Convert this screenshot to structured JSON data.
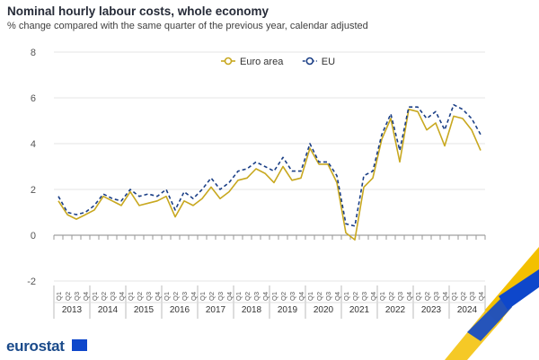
{
  "title": "Nominal hourly labour costs, whole economy",
  "subtitle": "% change compared with the same quarter of the previous year, calendar adjusted",
  "logo_text": "eurostat",
  "colors": {
    "euro_area": "#c8a81f",
    "eu": "#1b3f86"
  },
  "chart_data": {
    "type": "line",
    "ylim": [
      -2,
      8
    ],
    "yticks": [
      -2,
      0,
      2,
      4,
      6,
      8
    ],
    "quarters": [
      "Q1",
      "Q2",
      "Q3",
      "Q4"
    ],
    "years": [
      "2013",
      "2014",
      "2015",
      "2016",
      "2017",
      "2018",
      "2019",
      "2020",
      "2021",
      "2022",
      "2023",
      "2024"
    ],
    "legend_position": "top-center",
    "series": [
      {
        "name": "Euro area",
        "style": "solid",
        "values": [
          1.5,
          0.9,
          0.7,
          0.9,
          1.1,
          1.7,
          1.5,
          1.3,
          1.9,
          1.3,
          1.4,
          1.5,
          1.7,
          0.8,
          1.5,
          1.3,
          1.6,
          2.1,
          1.6,
          1.9,
          2.4,
          2.5,
          2.9,
          2.7,
          2.3,
          3.0,
          2.4,
          2.5,
          3.8,
          3.1,
          3.1,
          2.3,
          0.1,
          -0.2,
          2.1,
          2.5,
          4.2,
          5.1,
          3.2,
          5.5,
          5.4,
          4.6,
          4.9,
          3.9,
          5.2,
          5.1,
          4.6,
          3.7
        ]
      },
      {
        "name": "EU",
        "style": "dashed",
        "values": [
          1.7,
          1.0,
          0.9,
          1.0,
          1.3,
          1.8,
          1.6,
          1.5,
          2.0,
          1.7,
          1.8,
          1.7,
          2.0,
          1.1,
          1.9,
          1.6,
          2.0,
          2.5,
          2.0,
          2.3,
          2.8,
          2.9,
          3.2,
          3.0,
          2.8,
          3.4,
          2.8,
          2.8,
          4.0,
          3.2,
          3.2,
          2.6,
          0.5,
          0.4,
          2.6,
          2.8,
          4.4,
          5.3,
          3.7,
          5.6,
          5.6,
          5.1,
          5.4,
          4.6,
          5.7,
          5.5,
          5.1,
          4.4
        ]
      }
    ]
  }
}
